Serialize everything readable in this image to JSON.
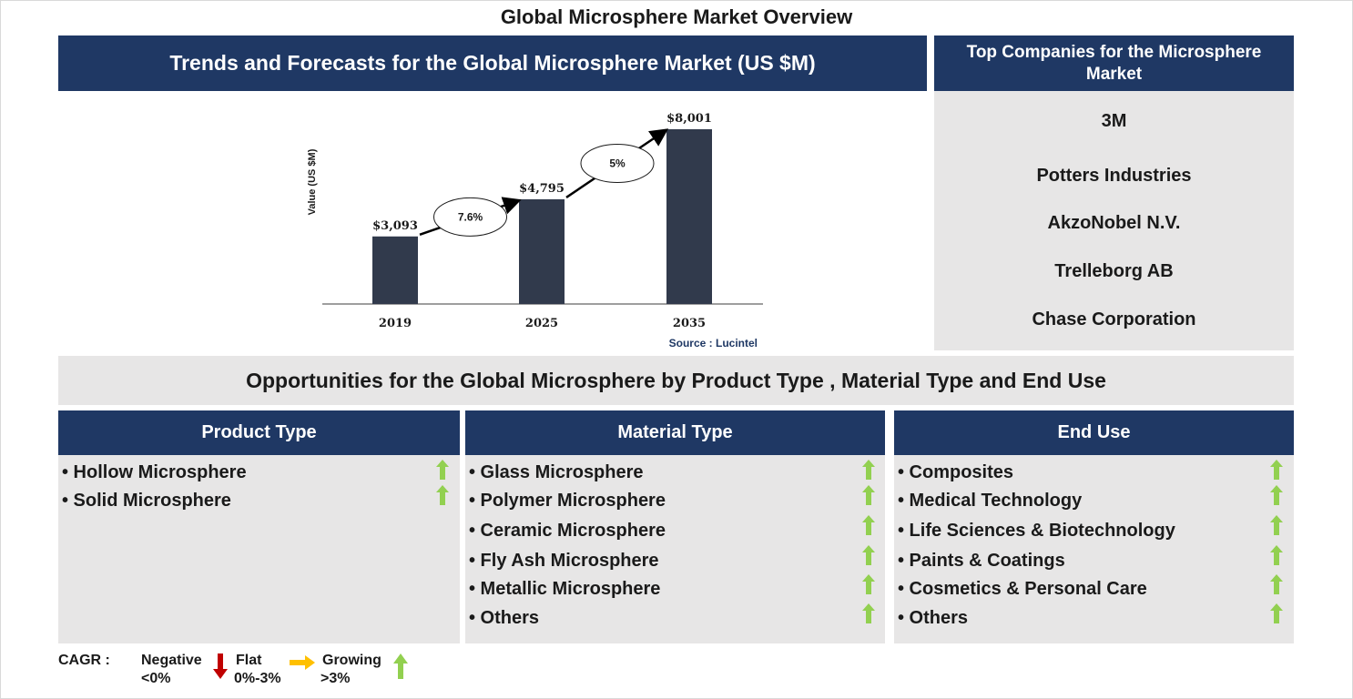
{
  "page_title": "Global Microsphere Market Overview",
  "trends": {
    "header": "Trends and Forecasts for the Global Microsphere Market (US $M)",
    "source": "Source : Lucintel"
  },
  "chart_data": {
    "type": "bar",
    "categories": [
      "2019",
      "2025",
      "2035"
    ],
    "values": [
      3093,
      4795,
      8001
    ],
    "value_labels": [
      "$3,093",
      "$4,795",
      "$8,001"
    ],
    "ylabel": "Value (US $M)",
    "xlabel": "",
    "ylim": [
      0,
      8001
    ],
    "bar_color": "#313a4c",
    "cagr_annotations": [
      {
        "from": "2019",
        "to": "2025",
        "label": "7.6%"
      },
      {
        "from": "2025",
        "to": "2035",
        "label": "5%"
      }
    ],
    "grid": false,
    "legend": "none"
  },
  "companies": {
    "header": "Top Companies for the Microsphere Market",
    "items": [
      "3M",
      "Potters Industries",
      "AkzoNobel N.V.",
      "Trelleborg AB",
      "Chase Corporation"
    ]
  },
  "opportunities": {
    "title": "Opportunities for the Global Microsphere by Product Type , Material Type and End Use",
    "columns": [
      {
        "title": "Product Type",
        "items": [
          "• Hollow Microsphere",
          "• Solid Microsphere"
        ]
      },
      {
        "title": "Material Type",
        "items": [
          "• Glass Microsphere",
          "• Polymer Microsphere",
          "• Ceramic Microsphere",
          "• Fly Ash Microsphere",
          "• Metallic Microsphere",
          "• Others"
        ]
      },
      {
        "title": "End Use",
        "items": [
          "• Composites",
          "• Medical Technology",
          "• Life Sciences & Biotechnology",
          "• Paints & Coatings",
          "• Cosmetics & Personal Care",
          "• Others"
        ]
      }
    ],
    "trend_icon": "growing-arrow-icon"
  },
  "legend": {
    "label": "CAGR :",
    "negative": {
      "title": "Negative",
      "range": "<0%",
      "color": "#c00000"
    },
    "flat": {
      "title": "Flat",
      "range": "0%-3%",
      "color": "#ffc000"
    },
    "growing": {
      "title": "Growing",
      "range": ">3%",
      "color": "#92d050"
    }
  },
  "colors": {
    "navy": "#1f3864",
    "panel_grey": "#e7e6e6",
    "growth_green": "#92d050"
  }
}
